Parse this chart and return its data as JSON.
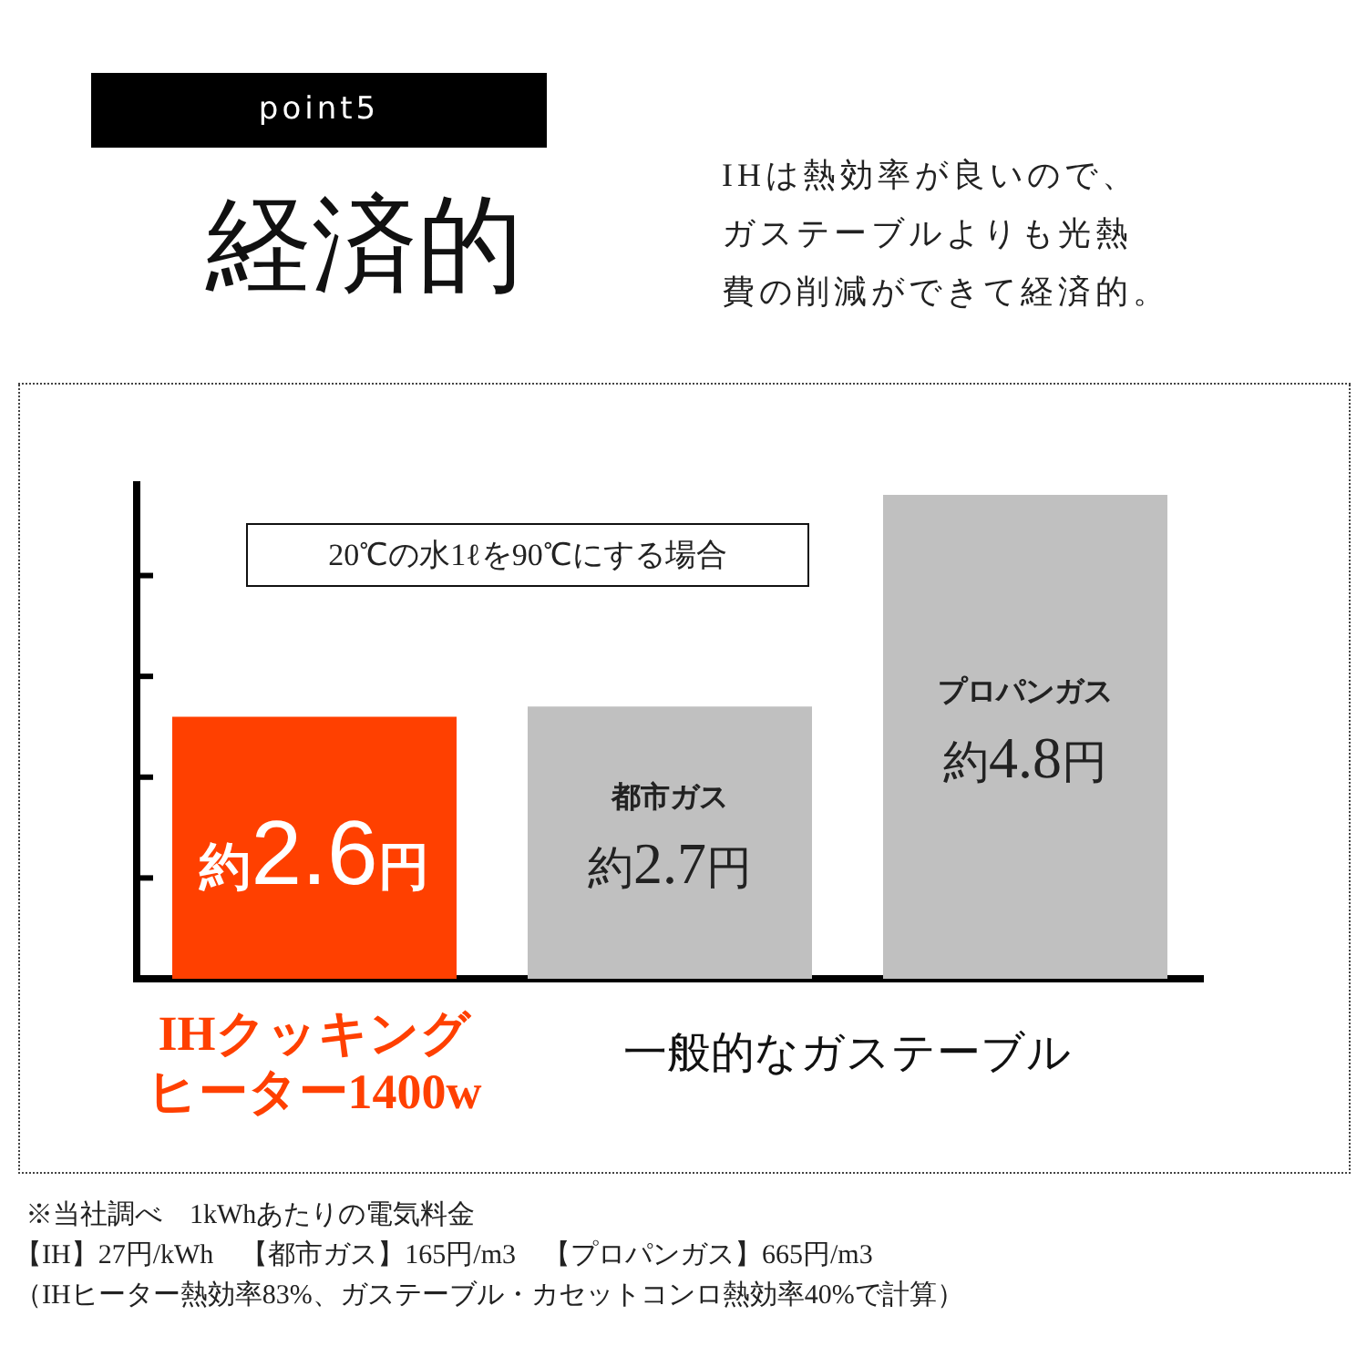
{
  "chart_data": {
    "type": "bar",
    "title": "経済的",
    "subtitle": "IHは熱効率が良いので、ガステーブルよりも光熱費の削減ができて経済的。",
    "categories": [
      "IHクッキングヒーター1400w",
      "都市ガス",
      "プロパンガス"
    ],
    "values": [
      2.6,
      2.7,
      4.8
    ],
    "colors": [
      "#ff4000",
      "#c0c0c0",
      "#c0c0c0"
    ],
    "value_labels": [
      "約2.6円",
      "約2.7円",
      "約4.8円"
    ],
    "ylim": [
      0,
      4.9
    ],
    "yticks": [
      {
        "value": 1,
        "label": null
      },
      {
        "value": 2,
        "label": null
      },
      {
        "value": 3,
        "label": null
      },
      {
        "value": 4,
        "label": null
      }
    ],
    "tick_labels": "x",
    "grid": false,
    "legend": false,
    "annotations": [
      "point5",
      "20℃の水1ℓを90℃にする場合",
      "一般的なガステーブル",
      "※当社調べ　1kWhあたりの電気料金",
      "【IH】27円/kWh　【都市ガス】165円/m3　【プロパンガス】665円/m3",
      "（IHヒーター熱効率83%、ガステーブル・カセットコンロ熱効率40%で計算）"
    ]
  }
}
